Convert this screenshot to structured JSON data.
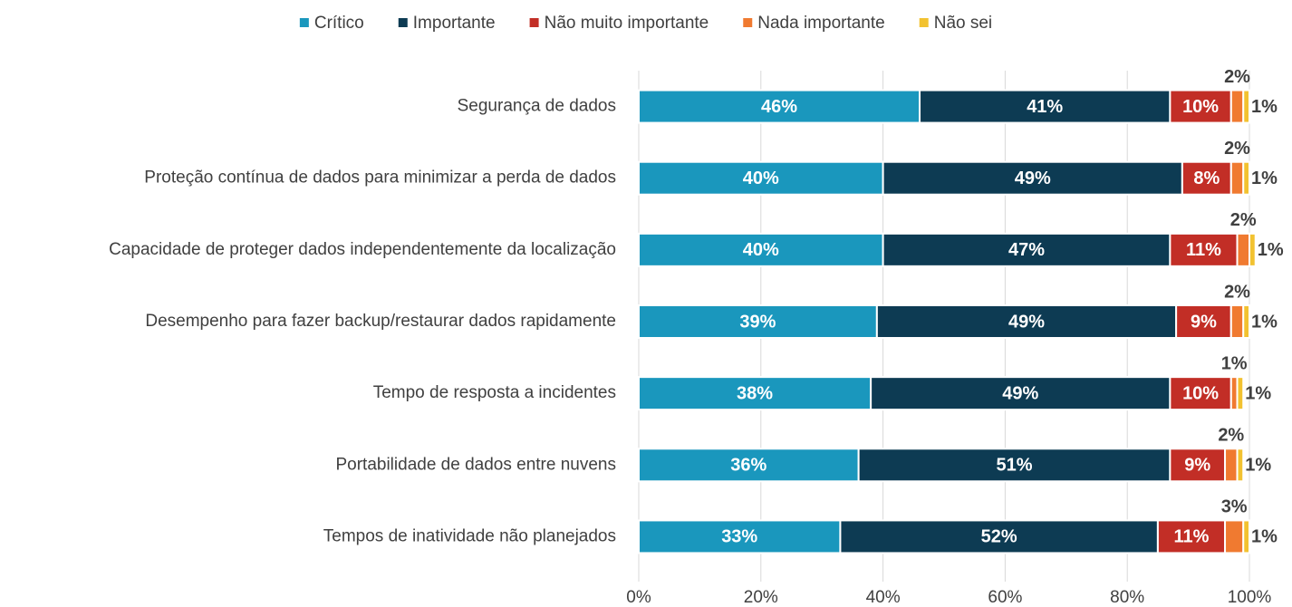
{
  "chart_data": {
    "type": "stacked-barh",
    "categories": [
      "Segurança de dados",
      "Proteção contínua de dados para minimizar a perda de dados",
      "Capacidade de proteger dados independentemente da localização",
      "Desempenho para fazer backup/restaurar dados rapidamente",
      "Tempo de resposta a incidentes",
      "Portabilidade de dados entre nuvens",
      "Tempos de inatividade não planejados"
    ],
    "series": [
      {
        "name": "Crítico",
        "color": "#1a97bd",
        "values": [
          46,
          40,
          40,
          39,
          38,
          36,
          33
        ],
        "value_labels": [
          "46%",
          "40%",
          "40%",
          "39%",
          "38%",
          "36%",
          "33%"
        ]
      },
      {
        "name": "Importante",
        "color": "#0d3b53",
        "values": [
          41,
          49,
          47,
          49,
          49,
          51,
          52
        ],
        "value_labels": [
          "41%",
          "49%",
          "47%",
          "49%",
          "49%",
          "51%",
          "52%"
        ]
      },
      {
        "name": "Não muito importante",
        "color": "#c22e26",
        "values": [
          10,
          8,
          11,
          9,
          10,
          9,
          11
        ],
        "value_labels": [
          "10%",
          "8%",
          "11%",
          "9%",
          "10%",
          "9%",
          "11%"
        ]
      },
      {
        "name": "Nada importante",
        "color": "#f07a30",
        "values": [
          2,
          2,
          2,
          2,
          1,
          2,
          3
        ],
        "value_labels": [
          "2%",
          "2%",
          "2%",
          "2%",
          "1%",
          "2%",
          "3%"
        ]
      },
      {
        "name": "Não sei",
        "color": "#f2c230",
        "values": [
          1,
          1,
          1,
          1,
          1,
          1,
          1
        ],
        "value_labels": [
          "1%",
          "1%",
          "1%",
          "1%",
          "1%",
          "1%",
          "1%"
        ]
      }
    ],
    "xlim": [
      0,
      100
    ],
    "xticks": [
      {
        "value": 0,
        "label": "0%"
      },
      {
        "value": 20,
        "label": "20%"
      },
      {
        "value": 40,
        "label": "40%"
      },
      {
        "value": 60,
        "label": "60%"
      },
      {
        "value": 80,
        "label": "80%"
      },
      {
        "value": 100,
        "label": "100%"
      }
    ],
    "grid": true,
    "legend": "top"
  }
}
